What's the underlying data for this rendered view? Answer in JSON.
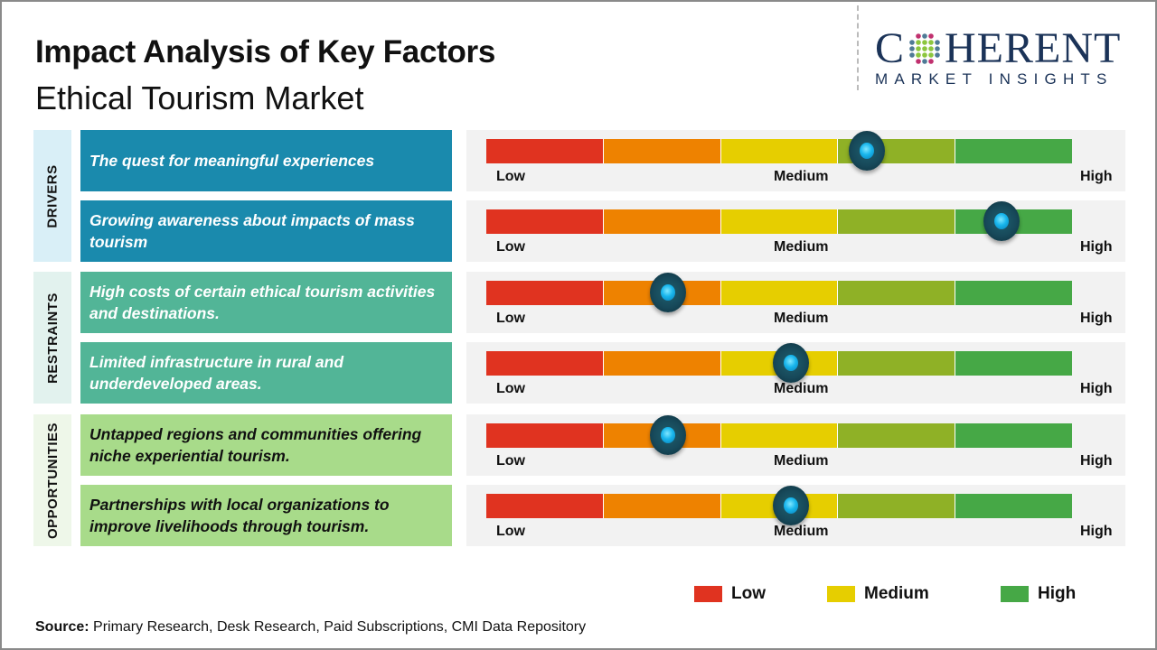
{
  "header": {
    "title": "Impact Analysis of Key Factors",
    "subtitle": "Ethical Tourism Market"
  },
  "logo": {
    "brand_left": "C",
    "brand_right": "HERENT",
    "tagline": "MARKET INSIGHTS",
    "brand_full": "COHERENT"
  },
  "colors": {
    "drivers": "#1a8aad",
    "restraints": "#52b597",
    "opportunities": "#a8db8a",
    "drivers_band": "#d9eff7",
    "restraints_band": "#e2f2ee",
    "opportunities_band": "#eef7e9",
    "segments": [
      "#e03320",
      "#ee8200",
      "#e6ce00",
      "#8fb126",
      "#46a846"
    ]
  },
  "categories": [
    {
      "name": "DRIVERS",
      "key": "drivers"
    },
    {
      "name": "RESTRAINTS",
      "key": "restraints"
    },
    {
      "name": "OPPORTUNITIES",
      "key": "opportunities"
    }
  ],
  "factors": [
    {
      "category": "drivers",
      "text": "The quest for meaningful experiences",
      "impact": 0.65
    },
    {
      "category": "drivers",
      "text": "Growing awareness about impacts of mass tourism",
      "impact": 0.88
    },
    {
      "category": "restraints",
      "text": "High costs of certain ethical tourism activities and destinations.",
      "impact": 0.31
    },
    {
      "category": "restraints",
      "text": "Limited infrastructure in rural and underdeveloped areas.",
      "impact": 0.52
    },
    {
      "category": "opportunities",
      "text": "Untapped regions and communities offering niche experiential tourism.",
      "impact": 0.31
    },
    {
      "category": "opportunities",
      "text": "Partnerships with local organizations to improve livelihoods through tourism.",
      "impact": 0.52
    }
  ],
  "scale": {
    "low": "Low",
    "medium": "Medium",
    "high": "High"
  },
  "legend": [
    {
      "label": "Low",
      "color": "#e03320"
    },
    {
      "label": "Medium",
      "color": "#e6ce00"
    },
    {
      "label": "High",
      "color": "#46a846"
    }
  ],
  "source": {
    "label": "Source:",
    "text": " Primary Research, Desk Research, Paid Subscriptions, CMI Data Repository"
  }
}
